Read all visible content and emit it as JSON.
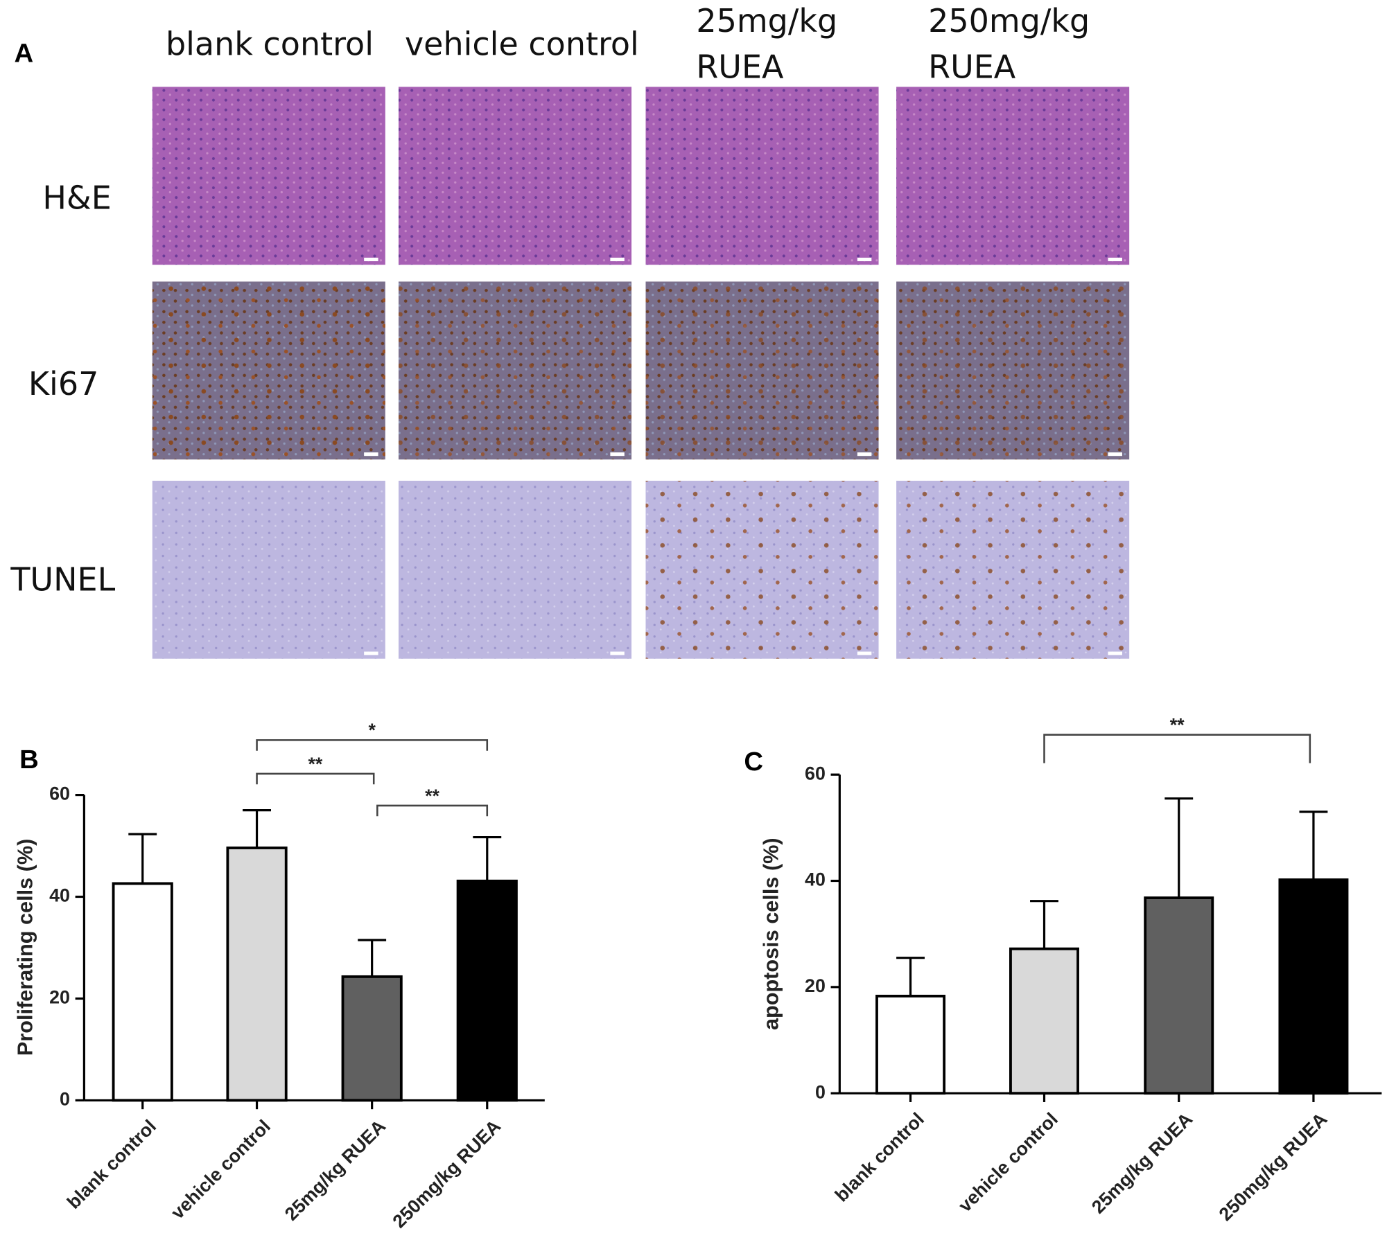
{
  "panel_a": {
    "label": "A",
    "columns": [
      "blank control",
      "vehicle control",
      [
        "25mg/kg",
        "RUEA"
      ],
      [
        "250mg/kg",
        "RUEA"
      ]
    ],
    "rows": [
      "H&E",
      "Ki67",
      "TUNEL"
    ]
  },
  "chart_data": [
    {
      "type": "bar",
      "panel_label": "B",
      "y_label": "Proliferating cells (%)",
      "categories": [
        "blank control",
        "vehicle control",
        "25mg/kg RUEA",
        "250mg/kg RUEA"
      ],
      "values": [
        42.6,
        49.6,
        24.3,
        43.1
      ],
      "errors": [
        9.7,
        7.4,
        7.2,
        8.6
      ],
      "colors": [
        "#ffffff",
        "#d9d9d9",
        "#606060",
        "#000000"
      ],
      "ylim": [
        0,
        60
      ],
      "yticks": [
        0,
        20,
        40,
        60
      ],
      "annotations": [
        "*",
        "**",
        "**"
      ]
    },
    {
      "type": "bar",
      "panel_label": "C",
      "y_label": "apoptosis cells (%)",
      "categories": [
        "blank control",
        "vehicle control",
        "25mg/kg RUEA",
        "250mg/kg RUEA"
      ],
      "values": [
        18.3,
        27.2,
        36.8,
        40.2
      ],
      "errors": [
        7.2,
        9.0,
        18.7,
        12.8
      ],
      "colors": [
        "#ffffff",
        "#d9d9d9",
        "#606060",
        "#000000"
      ],
      "ylim": [
        0,
        60
      ],
      "yticks": [
        0,
        20,
        40,
        60
      ],
      "annotations": [
        "**"
      ]
    }
  ]
}
